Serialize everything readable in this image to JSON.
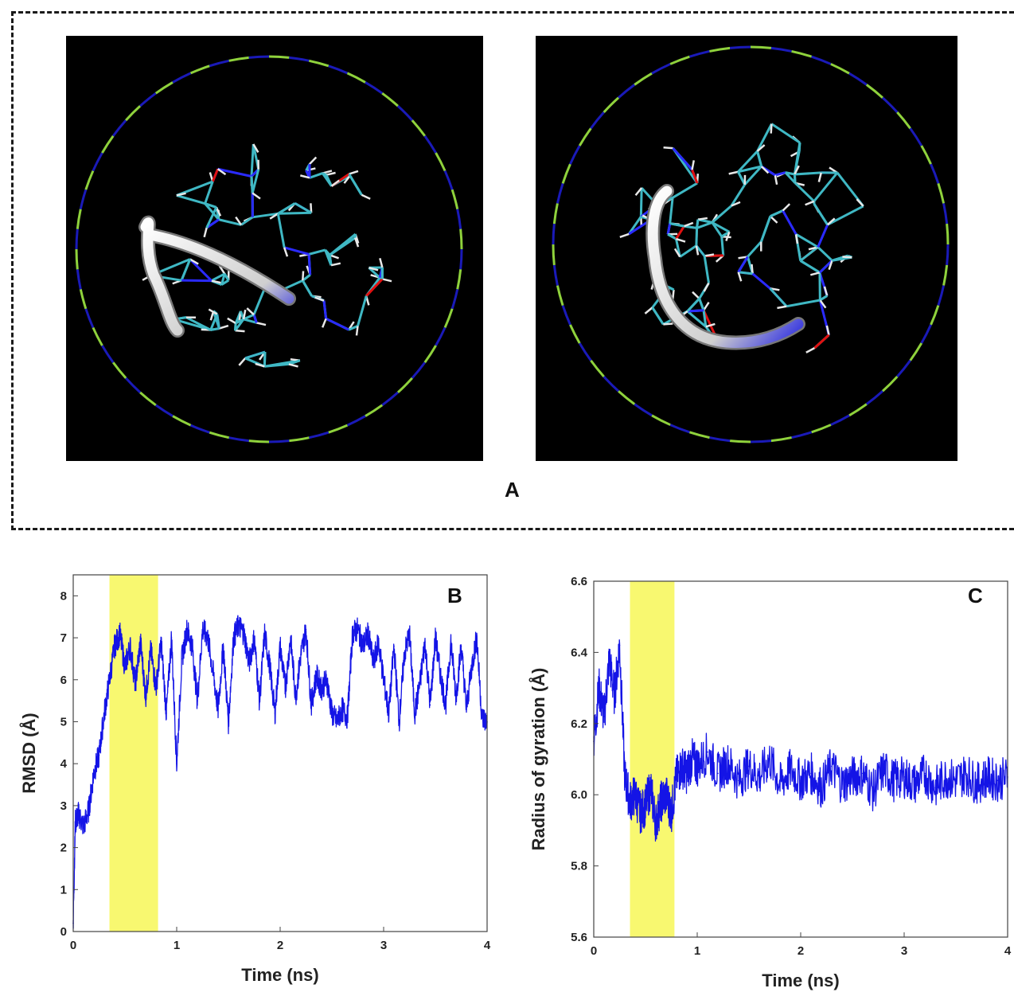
{
  "panels": {
    "a_label": "A",
    "b_label": "B",
    "c_label": "C"
  },
  "colors": {
    "trace": "#1414e6",
    "highlight": "#f8f870",
    "panel_bg": "#000000",
    "sphere_dash_a": "#1a1ab8",
    "sphere_dash_b": "#8fd23c",
    "bond": "#3fb8c4"
  },
  "chart_data": [
    {
      "type": "line",
      "panel": "B",
      "title": "",
      "xlabel": "Time (ns)",
      "ylabel": "RMSD (Å)",
      "xlim": [
        0,
        4
      ],
      "ylim": [
        0,
        8.5
      ],
      "xticks": [
        0,
        1,
        2,
        3,
        4
      ],
      "yticks": [
        0,
        1,
        2,
        3,
        4,
        5,
        6,
        7,
        8
      ],
      "highlight_x": [
        0.35,
        0.82
      ],
      "series": [
        {
          "x": [
            0,
            0.02,
            0.05,
            0.1,
            0.15,
            0.2,
            0.25,
            0.3,
            0.35,
            0.4,
            0.45,
            0.5,
            0.55,
            0.6,
            0.65,
            0.7,
            0.75,
            0.8,
            0.85,
            0.9,
            0.95,
            1.0,
            1.05,
            1.1,
            1.15,
            1.2,
            1.25,
            1.3,
            1.35,
            1.4,
            1.45,
            1.5,
            1.55,
            1.6,
            1.65,
            1.7,
            1.75,
            1.8,
            1.85,
            1.9,
            1.95,
            2.0,
            2.05,
            2.1,
            2.15,
            2.2,
            2.25,
            2.3,
            2.35,
            2.4,
            2.45,
            2.5,
            2.55,
            2.6,
            2.65,
            2.7,
            2.75,
            2.8,
            2.85,
            2.9,
            2.95,
            3.0,
            3.05,
            3.1,
            3.15,
            3.2,
            3.25,
            3.3,
            3.35,
            3.4,
            3.45,
            3.5,
            3.55,
            3.6,
            3.65,
            3.7,
            3.75,
            3.8,
            3.85,
            3.9,
            3.95,
            4.0
          ],
          "values": [
            0.2,
            2.6,
            2.8,
            2.5,
            2.9,
            3.8,
            4.2,
            5.2,
            6.0,
            6.8,
            7.1,
            6.3,
            6.8,
            5.9,
            6.9,
            5.6,
            6.7,
            5.8,
            6.9,
            5.2,
            7.0,
            4.0,
            6.5,
            7.2,
            6.8,
            5.5,
            7.2,
            7.0,
            6.2,
            5.3,
            6.8,
            5.0,
            7.0,
            7.3,
            7.1,
            6.4,
            7.0,
            5.5,
            7.1,
            6.3,
            5.2,
            6.8,
            5.8,
            7.0,
            5.6,
            6.6,
            7.2,
            5.4,
            6.1,
            5.8,
            6.0,
            5.2,
            5.0,
            5.3,
            5.1,
            7.1,
            7.2,
            6.8,
            7.1,
            6.4,
            6.9,
            6.0,
            5.2,
            6.8,
            5.0,
            6.6,
            7.1,
            5.2,
            5.9,
            6.9,
            5.4,
            7.0,
            6.1,
            5.4,
            6.9,
            5.6,
            6.8,
            5.3,
            6.3,
            7.0,
            5.1,
            5.0
          ]
        }
      ]
    },
    {
      "type": "line",
      "panel": "C",
      "title": "",
      "xlabel": "Time (ns)",
      "ylabel": "Radius of gyration (Å)",
      "xlim": [
        0,
        4
      ],
      "ylim": [
        5.6,
        6.6
      ],
      "xticks": [
        0,
        1,
        2,
        3,
        4
      ],
      "yticks": [
        5.6,
        5.8,
        6.0,
        6.2,
        6.4,
        6.6
      ],
      "highlight_x": [
        0.35,
        0.78
      ],
      "series": [
        {
          "x": [
            0,
            0.05,
            0.1,
            0.15,
            0.2,
            0.25,
            0.3,
            0.35,
            0.4,
            0.45,
            0.5,
            0.55,
            0.6,
            0.65,
            0.7,
            0.75,
            0.8,
            0.85,
            0.9,
            0.95,
            1.0,
            1.1,
            1.2,
            1.3,
            1.4,
            1.5,
            1.6,
            1.7,
            1.8,
            1.9,
            2.0,
            2.1,
            2.2,
            2.3,
            2.4,
            2.5,
            2.6,
            2.7,
            2.8,
            2.9,
            3.0,
            3.1,
            3.2,
            3.3,
            3.4,
            3.5,
            3.6,
            3.7,
            3.8,
            3.9,
            4.0
          ],
          "values": [
            6.15,
            6.3,
            6.22,
            6.38,
            6.28,
            6.42,
            6.05,
            5.98,
            6.0,
            5.95,
            5.97,
            6.02,
            5.92,
            5.98,
            6.0,
            5.95,
            6.05,
            6.08,
            6.06,
            6.1,
            6.08,
            6.12,
            6.06,
            6.09,
            6.04,
            6.08,
            6.05,
            6.1,
            6.03,
            6.07,
            6.04,
            6.06,
            6.02,
            6.08,
            6.03,
            6.05,
            6.06,
            6.01,
            6.07,
            6.04,
            6.05,
            6.03,
            6.06,
            6.02,
            6.05,
            6.04,
            6.06,
            6.03,
            6.05,
            6.04,
            6.05
          ]
        }
      ]
    }
  ]
}
